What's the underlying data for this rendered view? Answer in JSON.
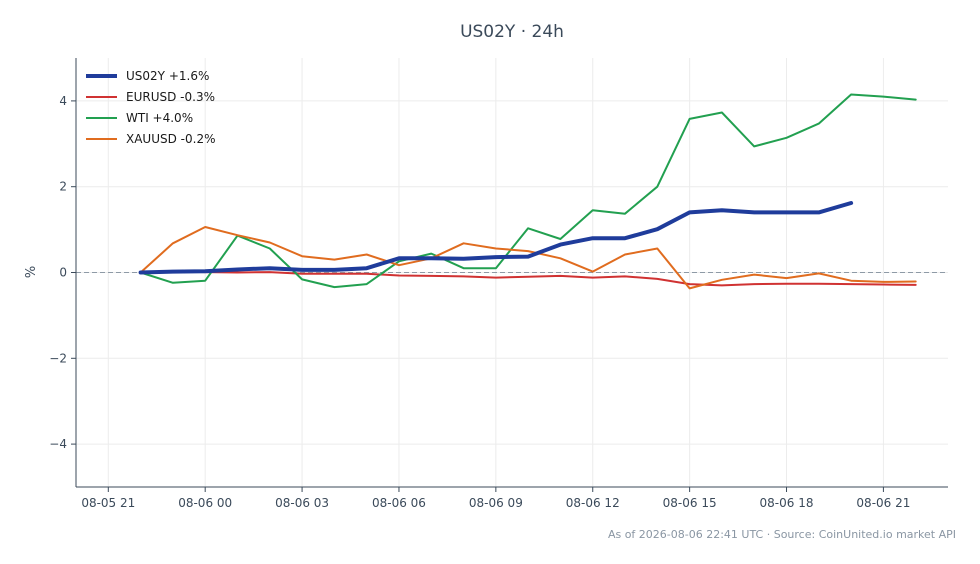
{
  "chart_data": {
    "type": "line",
    "title": "US02Y · 24h",
    "ylabel": "%",
    "xlabel": "",
    "x_tick_labels": [
      "08-05 21",
      "08-06 00",
      "08-06 03",
      "08-06 06",
      "08-06 09",
      "08-06 12",
      "08-06 15",
      "08-06 18",
      "08-06 21"
    ],
    "y_tick_labels": [
      "−4",
      "−2",
      "0",
      "2",
      "4"
    ],
    "y_ticks": [
      -4,
      -2,
      0,
      2,
      4
    ],
    "xlim": [
      "08-05 20:00",
      "08-06 23:00"
    ],
    "ylim": [
      -5,
      5
    ],
    "grid": true,
    "zero_line": "dashed",
    "legend_position": "top-left",
    "series": [
      {
        "name": "US02Y +1.6%",
        "color": "#1f3c9b",
        "emphasis": true,
        "x": [
          "08-05 22:00",
          "08-05 23:00",
          "08-06 00:00",
          "08-06 01:00",
          "08-06 02:00",
          "08-06 03:00",
          "08-06 04:00",
          "08-06 05:00",
          "08-06 06:00",
          "08-06 07:00",
          "08-06 08:00",
          "08-06 09:00",
          "08-06 10:00",
          "08-06 11:00",
          "08-06 12:00",
          "08-06 13:00",
          "08-06 14:00",
          "08-06 15:00",
          "08-06 16:00",
          "08-06 17:00",
          "08-06 18:00",
          "08-06 19:00",
          "08-06 20:00"
        ],
        "values": [
          0,
          0.02,
          0.03,
          0.07,
          0.1,
          0.06,
          0.06,
          0.1,
          0.33,
          0.33,
          0.32,
          0.36,
          0.37,
          0.65,
          0.8,
          0.8,
          1.01,
          1.4,
          1.45,
          1.4,
          1.4,
          1.4,
          1.62
        ]
      },
      {
        "name": "EURUSD -0.3%",
        "color": "#d03232",
        "emphasis": false,
        "x": [
          "08-05 22:00",
          "08-05 23:00",
          "08-06 00:00",
          "08-06 01:00",
          "08-06 02:00",
          "08-06 03:00",
          "08-06 04:00",
          "08-06 05:00",
          "08-06 06:00",
          "08-06 07:00",
          "08-06 08:00",
          "08-06 09:00",
          "08-06 10:00",
          "08-06 11:00",
          "08-06 12:00",
          "08-06 13:00",
          "08-06 14:00",
          "08-06 15:00",
          "08-06 16:00",
          "08-06 17:00",
          "08-06 18:00",
          "08-06 19:00",
          "08-06 20:00",
          "08-06 21:00",
          "08-06 22:00"
        ],
        "values": [
          0,
          0.03,
          0.01,
          0.0,
          0.01,
          -0.03,
          -0.03,
          -0.03,
          -0.07,
          -0.08,
          -0.09,
          -0.12,
          -0.1,
          -0.08,
          -0.12,
          -0.09,
          -0.15,
          -0.27,
          -0.3,
          -0.27,
          -0.26,
          -0.26,
          -0.27,
          -0.28,
          -0.29
        ]
      },
      {
        "name": "WTI +4.0%",
        "color": "#22a050",
        "emphasis": false,
        "x": [
          "08-05 22:00",
          "08-05 23:00",
          "08-06 00:00",
          "08-06 01:00",
          "08-06 02:00",
          "08-06 03:00",
          "08-06 04:00",
          "08-06 05:00",
          "08-06 06:00",
          "08-06 07:00",
          "08-06 08:00",
          "08-06 09:00",
          "08-06 10:00",
          "08-06 11:00",
          "08-06 12:00",
          "08-06 13:00",
          "08-06 14:00",
          "08-06 15:00",
          "08-06 16:00",
          "08-06 17:00",
          "08-06 18:00",
          "08-06 19:00",
          "08-06 20:00",
          "08-06 21:00",
          "08-06 22:00"
        ],
        "values": [
          0,
          -0.24,
          -0.19,
          0.86,
          0.56,
          -0.16,
          -0.34,
          -0.27,
          0.26,
          0.44,
          0.1,
          0.1,
          1.03,
          0.78,
          1.45,
          1.37,
          2.0,
          3.58,
          3.73,
          2.94,
          3.14,
          3.47,
          4.15,
          4.1,
          4.03
        ]
      },
      {
        "name": "XAUUSD -0.2%",
        "color": "#e06c1f",
        "emphasis": false,
        "x": [
          "08-05 22:00",
          "08-05 23:00",
          "08-06 00:00",
          "08-06 01:00",
          "08-06 02:00",
          "08-06 03:00",
          "08-06 04:00",
          "08-06 05:00",
          "08-06 06:00",
          "08-06 07:00",
          "08-06 08:00",
          "08-06 09:00",
          "08-06 10:00",
          "08-06 11:00",
          "08-06 12:00",
          "08-06 13:00",
          "08-06 14:00",
          "08-06 15:00",
          "08-06 16:00",
          "08-06 17:00",
          "08-06 18:00",
          "08-06 19:00",
          "08-06 20:00",
          "08-06 21:00",
          "08-06 22:00"
        ],
        "values": [
          0,
          0.68,
          1.06,
          0.87,
          0.7,
          0.38,
          0.3,
          0.42,
          0.17,
          0.33,
          0.68,
          0.56,
          0.5,
          0.33,
          0.02,
          0.42,
          0.56,
          -0.37,
          -0.17,
          -0.05,
          -0.13,
          -0.02,
          -0.19,
          -0.22,
          -0.21
        ]
      }
    ]
  },
  "footer": {
    "text": "As of 2026-08-06 22:41 UTC · Source: CoinUnited.io market API"
  }
}
